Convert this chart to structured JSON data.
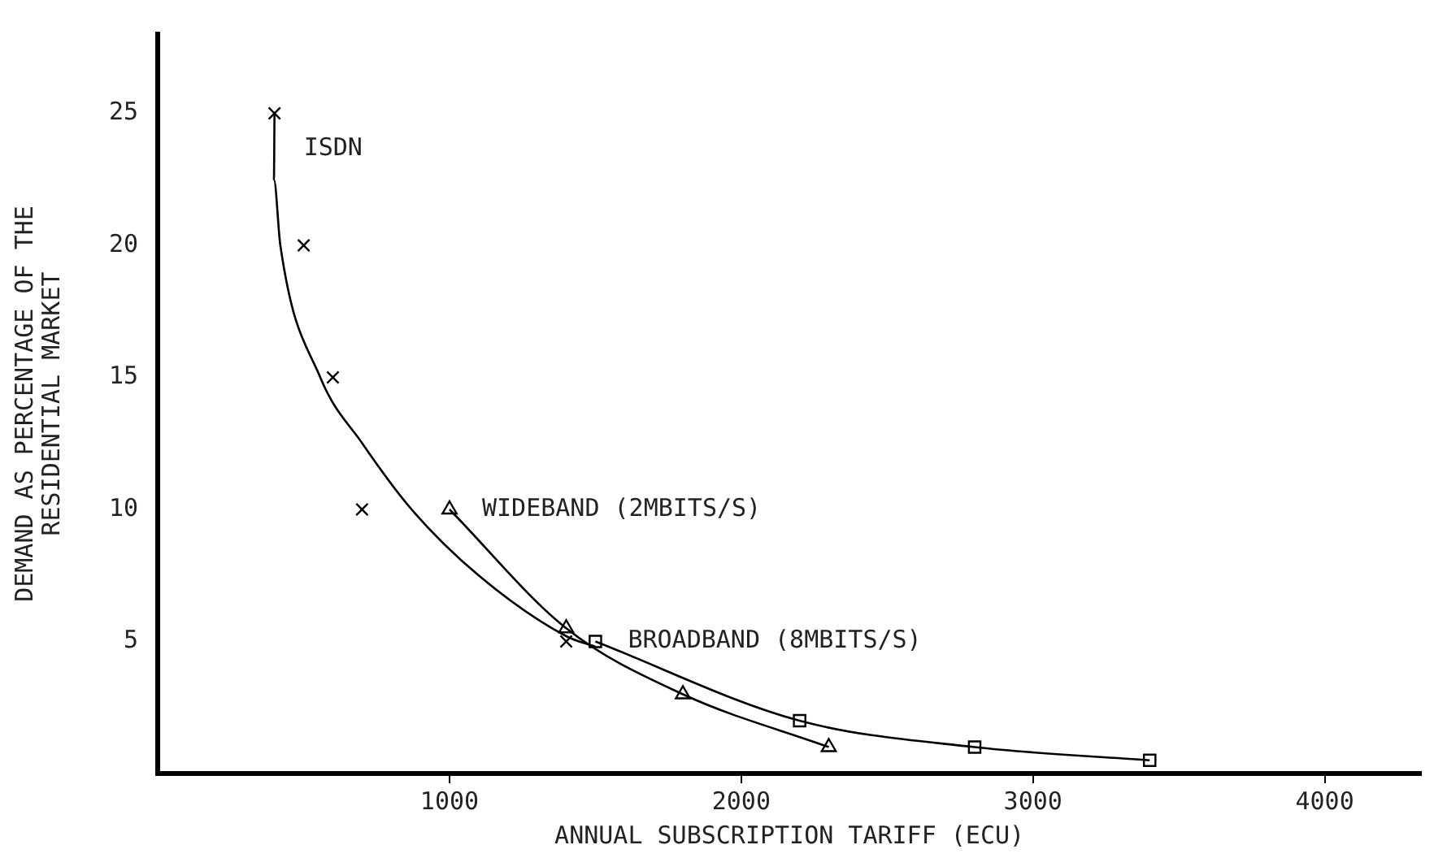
{
  "chart_data": {
    "type": "line",
    "xlabel": "ANNUAL SUBSCRIPTION TARIFF (ECU)",
    "ylabel": "DEMAND AS PERCENTAGE OF THE\nRESIDENTIAL MARKET",
    "xlim": [
      0,
      4330
    ],
    "xticks": [
      1000,
      2000,
      3000,
      4000
    ],
    "ylim": [
      0,
      28
    ],
    "yticks": [
      5,
      10,
      15,
      20,
      25
    ],
    "grid": false,
    "legend": false,
    "line_style": "solid",
    "series": [
      {
        "name": "ISDN",
        "type": "scatter",
        "marker": "cross",
        "color": "#000000",
        "x": [
          400,
          500,
          600,
          700,
          1400
        ],
        "values": [
          25,
          20,
          15,
          10,
          5
        ]
      },
      {
        "type": "line",
        "marker": "none",
        "color": "#000000",
        "x": [
          400,
          398,
          420,
          557,
          701,
          870,
          1100,
          1400,
          1500
        ],
        "values": [
          25,
          22.5,
          20,
          15,
          12.5,
          10,
          7.5,
          5.2,
          4.8
        ]
      },
      {
        "name": "WIDEBAND (2MBITS/S)",
        "type": "line",
        "marker": "triangle",
        "color": "#000000",
        "x": [
          1000,
          1400,
          1800,
          2300
        ],
        "values": [
          10,
          5.5,
          3,
          1
        ]
      },
      {
        "name": "BROADBAND (8MBITS/S)",
        "type": "line",
        "marker": "square",
        "color": "#000000",
        "x": [
          1500,
          2200,
          2800,
          3400
        ],
        "values": [
          5,
          2,
          1,
          0.5
        ]
      }
    ]
  }
}
